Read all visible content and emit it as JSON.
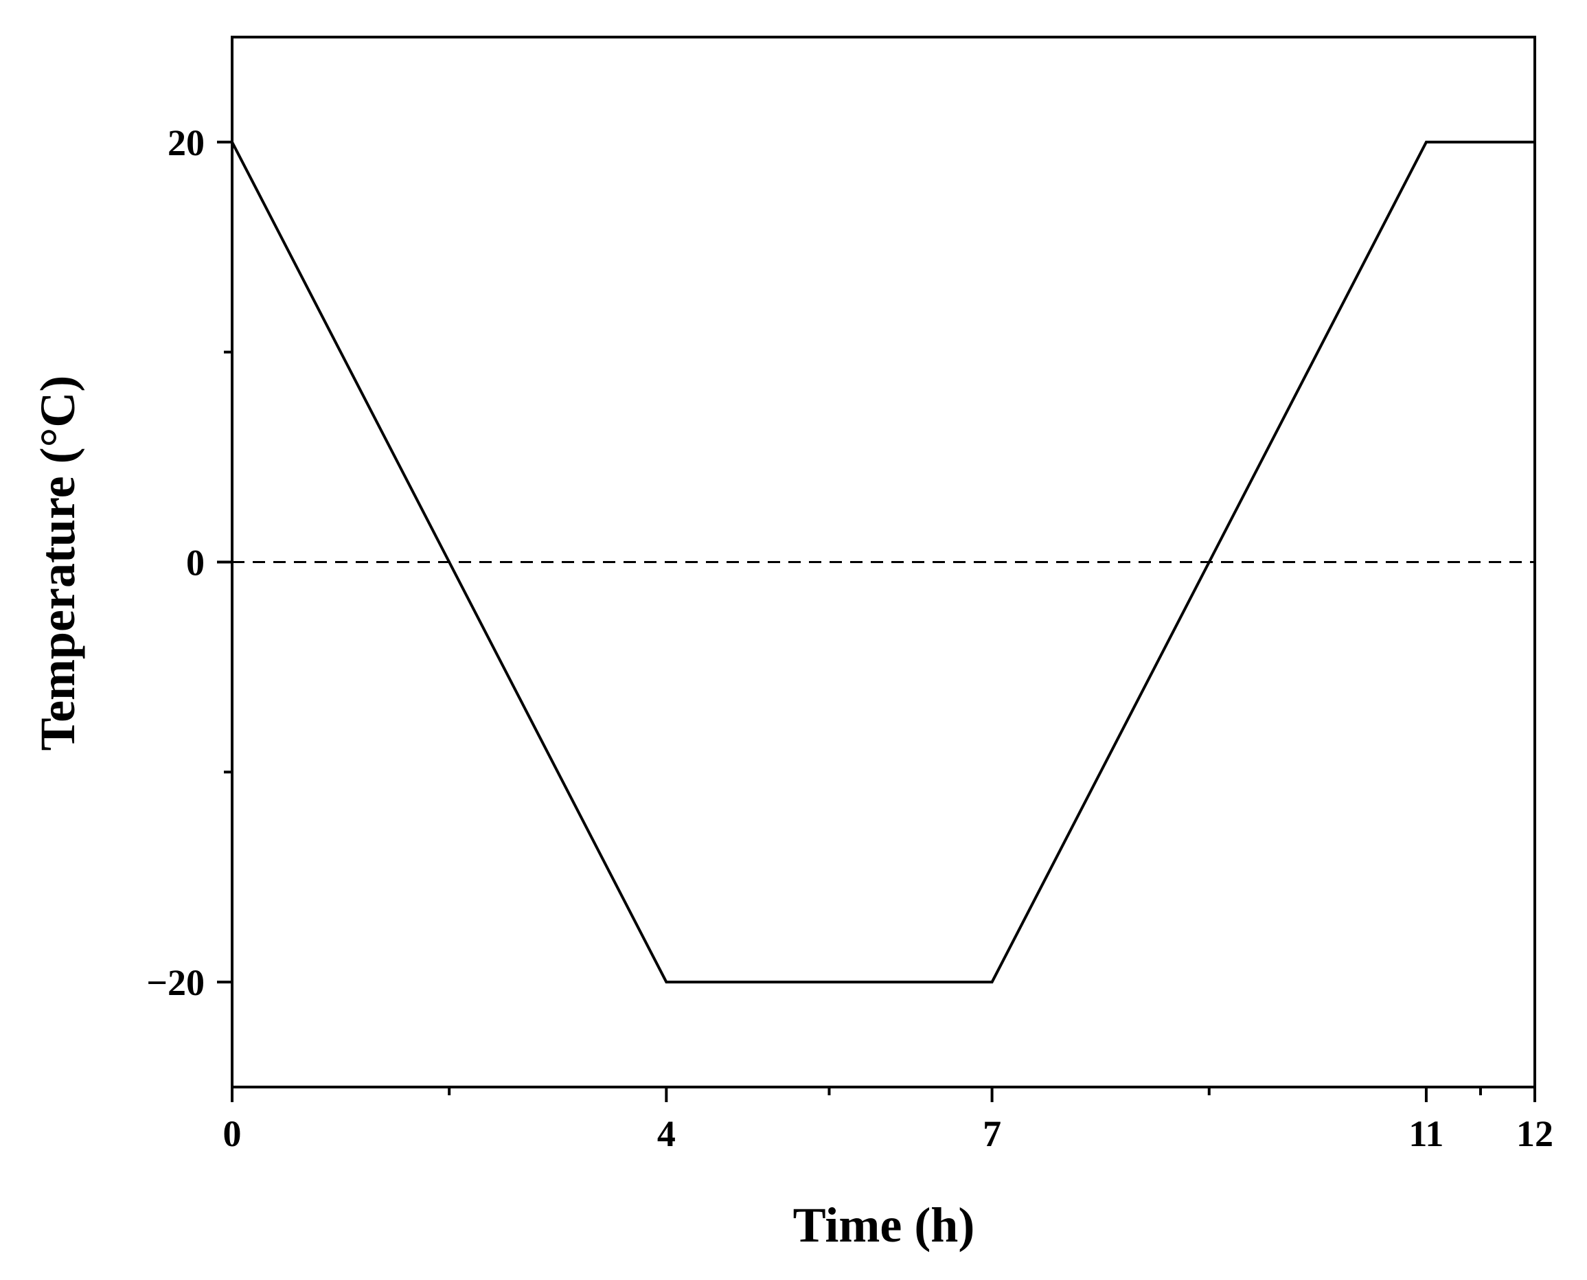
{
  "chart_data": {
    "type": "line",
    "title": "",
    "xlabel": "Time (h)",
    "ylabel": "Temperature (°C)",
    "xlim": [
      0,
      12
    ],
    "ylim": [
      -25,
      25
    ],
    "grid": false,
    "series": [
      {
        "x": [
          0,
          4,
          7,
          11,
          12
        ],
        "y": [
          20,
          -20,
          -20,
          20,
          20
        ],
        "color": "#000000",
        "style": "solid"
      }
    ],
    "reference_lines": [
      {
        "axis": "y",
        "value": 0,
        "style": "dashed",
        "color": "#000000"
      }
    ],
    "x_ticks": [
      {
        "value": 0,
        "label": "0"
      },
      {
        "value": 4,
        "label": "4"
      },
      {
        "value": 7,
        "label": "7"
      },
      {
        "value": 11,
        "label": "11"
      },
      {
        "value": 12,
        "label": "12"
      }
    ],
    "x_minor_ticks": [
      2,
      5.5,
      9,
      11.5
    ],
    "y_ticks": [
      {
        "value": 20,
        "label": "20"
      },
      {
        "value": 0,
        "label": "0"
      },
      {
        "value": -20,
        "label": "−20"
      }
    ],
    "y_minor_ticks": [
      10,
      -10
    ]
  }
}
